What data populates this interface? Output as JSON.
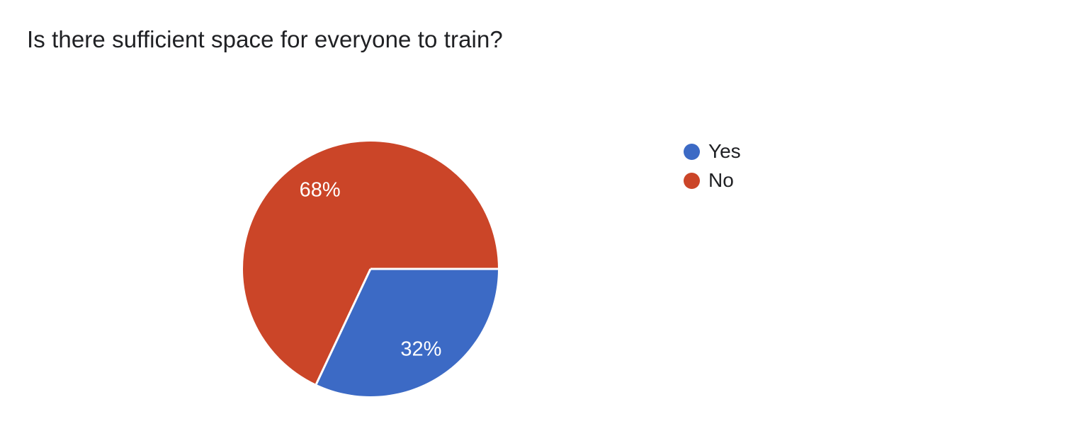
{
  "page": {
    "background": "#ffffff"
  },
  "chart_data": {
    "type": "pie",
    "title": "Is there sufficient space for everyone to train?",
    "categories": [
      "Yes",
      "No"
    ],
    "values": [
      32,
      68
    ],
    "unit": "%",
    "colors": [
      "#3c6ac5",
      "#cb4528"
    ],
    "slice_labels": [
      "32%",
      "68%"
    ],
    "label_color": "#ffffff",
    "title_color": "#202124",
    "legend_position": "right",
    "legend_text_color": "#202124",
    "start_angle_deg": 0,
    "direction": "clockwise",
    "separator_color": "#ffffff"
  }
}
